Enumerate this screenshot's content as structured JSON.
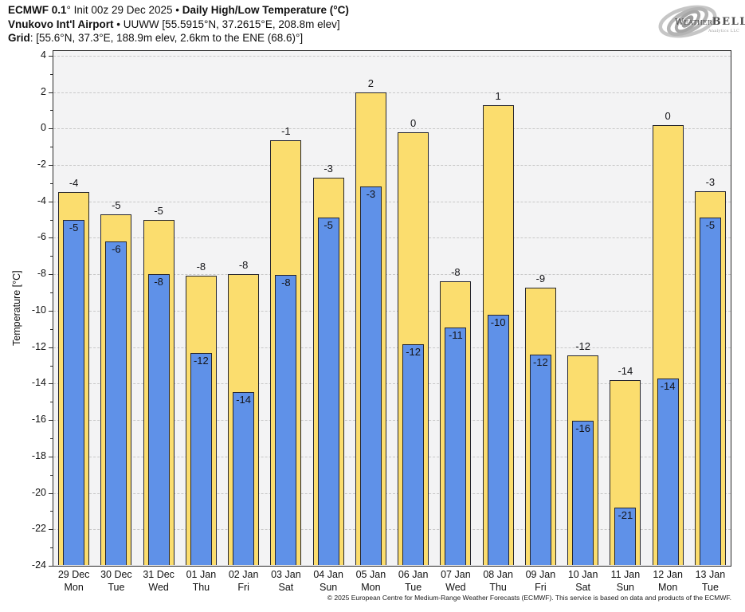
{
  "header": {
    "line1_bold_a": "ECMWF 0.1",
    "line1_regular": "° Init 00z 29 Dec 2025 • ",
    "line1_bold_b": "Daily High/Low Temperature (°C)",
    "line2_bold": "Vnukovo Int'l Airport",
    "line2_regular": " • UUWW [55.5915°N, 37.2615°E, 208.8m elev]",
    "line3_bold": "Grid",
    "line3_regular": ": [55.6°N, 37.3°E, 188.9m elev, 2.6km to the ENE (68.6)°]"
  },
  "logo": {
    "weather": "Weather",
    "bell": "BELL",
    "subtext": "Analytics LLC"
  },
  "chart_data": {
    "type": "bar",
    "title": "ECMWF 0.1° Init 00z 29 Dec 2025 • Daily High/Low Temperature (°C)",
    "subtitle": "Vnukovo Int'l Airport • UUWW [55.5915°N, 37.2615°E, 208.8m elev]",
    "grid_info": "Grid: [55.6°N, 37.3°E, 188.9m elev, 2.6km to the ENE (68.6)°]",
    "xlabel": "",
    "ylabel": "Temperature [°C]",
    "ylim": [
      -24,
      4.3
    ],
    "ytick_step": 2,
    "yticks": [
      4,
      2,
      0,
      -2,
      -4,
      -6,
      -8,
      -10,
      -12,
      -14,
      -16,
      -18,
      -20,
      -22,
      -24
    ],
    "grid": "horizontal dashed",
    "legend": "none",
    "categories": [
      {
        "date": "29 Dec",
        "day": "Mon"
      },
      {
        "date": "30 Dec",
        "day": "Tue"
      },
      {
        "date": "31 Dec",
        "day": "Wed"
      },
      {
        "date": "01 Jan",
        "day": "Thu"
      },
      {
        "date": "02 Jan",
        "day": "Fri"
      },
      {
        "date": "03 Jan",
        "day": "Sat"
      },
      {
        "date": "04 Jan",
        "day": "Sun"
      },
      {
        "date": "05 Jan",
        "day": "Mon"
      },
      {
        "date": "06 Jan",
        "day": "Tue"
      },
      {
        "date": "07 Jan",
        "day": "Wed"
      },
      {
        "date": "08 Jan",
        "day": "Thu"
      },
      {
        "date": "09 Jan",
        "day": "Fri"
      },
      {
        "date": "10 Jan",
        "day": "Sat"
      },
      {
        "date": "11 Jan",
        "day": "Sun"
      },
      {
        "date": "12 Jan",
        "day": "Mon"
      },
      {
        "date": "13 Jan",
        "day": "Tue"
      }
    ],
    "series": [
      {
        "name": "Daily High",
        "color": "#fbdd6e",
        "values": [
          -3.5,
          -4.7,
          -5.0,
          -8.1,
          -8.0,
          -0.65,
          -2.7,
          2.0,
          -0.2,
          -8.4,
          1.3,
          -8.75,
          -12.45,
          -13.8,
          0.2,
          -3.45
        ],
        "labels": [
          "-4",
          "-5",
          "-5",
          "-8",
          "-8",
          "-1",
          "-3",
          "2",
          "0",
          "-8",
          "1",
          "-9",
          "-12",
          "-14",
          "0",
          "-3"
        ]
      },
      {
        "name": "Daily Low",
        "color": "#5f91e8",
        "values": [
          -5.0,
          -6.2,
          -8.0,
          -12.3,
          -14.45,
          -8.05,
          -4.9,
          -3.2,
          -11.85,
          -10.9,
          -10.2,
          -12.4,
          -16.05,
          -20.8,
          -13.7,
          -4.9
        ],
        "labels": [
          "-5",
          "-6",
          "-8",
          "-12",
          "-14",
          "-8",
          "-5",
          "-3",
          "-12",
          "-11",
          "-10",
          "-12",
          "-16",
          "-21",
          "-14",
          "-5"
        ]
      }
    ]
  },
  "footer": "© 2025 European Centre for Medium-Range Weather Forecasts (ECMWF). This service is based on data and products of the ECMWF."
}
